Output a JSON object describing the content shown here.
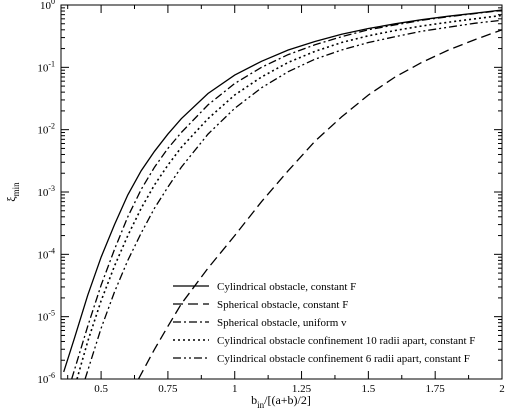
{
  "chart_data": {
    "type": "line",
    "title": "",
    "xlabel": "b_in/[(a+b)/2]",
    "ylabel": "ξ_min",
    "xlim": [
      0.35,
      2.0
    ],
    "ylim": [
      1e-06,
      1
    ],
    "yscale": "log",
    "grid": false,
    "legend_position": "bottom-right",
    "x_ticks": [
      {
        "value": 0.5,
        "label": "0.5"
      },
      {
        "value": 0.75,
        "label": "0.75"
      },
      {
        "value": 1.0,
        "label": "1"
      },
      {
        "value": 1.25,
        "label": "1.25"
      },
      {
        "value": 1.5,
        "label": "1.5"
      },
      {
        "value": 1.75,
        "label": "1.75"
      },
      {
        "value": 2.0,
        "label": "2"
      }
    ],
    "y_ticks": [
      {
        "value": 1e-06,
        "base": "10",
        "exp": "-6"
      },
      {
        "value": 1e-05,
        "base": "10",
        "exp": "-5"
      },
      {
        "value": 0.0001,
        "base": "10",
        "exp": "-4"
      },
      {
        "value": 0.001,
        "base": "10",
        "exp": "-3"
      },
      {
        "value": 0.01,
        "base": "10",
        "exp": "-2"
      },
      {
        "value": 0.1,
        "base": "10",
        "exp": "-1"
      },
      {
        "value": 1,
        "base": "10",
        "exp": "0"
      }
    ],
    "series": [
      {
        "name": "Cylindrical obstacle, constant F",
        "dash": "solid",
        "x": [
          0.36,
          0.4,
          0.45,
          0.5,
          0.55,
          0.6,
          0.65,
          0.7,
          0.75,
          0.8,
          0.9,
          1.0,
          1.1,
          1.2,
          1.3,
          1.4,
          1.5,
          1.6,
          1.7,
          1.8,
          1.9,
          2.0
        ],
        "y": [
          1.3e-06,
          4.5e-06,
          2.2e-05,
          9e-05,
          0.0003,
          0.0009,
          0.0022,
          0.0045,
          0.0085,
          0.015,
          0.038,
          0.075,
          0.125,
          0.19,
          0.26,
          0.34,
          0.42,
          0.5,
          0.58,
          0.66,
          0.74,
          0.83
        ]
      },
      {
        "name": "Spherical obstacle, constant F",
        "dash": "dashed",
        "x": [
          0.64,
          0.7,
          0.75,
          0.8,
          0.9,
          1.0,
          1.1,
          1.2,
          1.3,
          1.4,
          1.5,
          1.6,
          1.7,
          1.8,
          1.9,
          2.0
        ],
        "y": [
          1e-06,
          3e-06,
          7e-06,
          1.6e-05,
          6e-05,
          0.0002,
          0.0007,
          0.0022,
          0.0065,
          0.016,
          0.036,
          0.07,
          0.12,
          0.19,
          0.28,
          0.4
        ]
      },
      {
        "name": "Spherical obstacle, uniform v",
        "dash": "dash-dot",
        "x": [
          0.39,
          0.45,
          0.5,
          0.55,
          0.6,
          0.65,
          0.7,
          0.75,
          0.8,
          0.9,
          1.0,
          1.1,
          1.2,
          1.3,
          1.4,
          1.5,
          1.6,
          1.7,
          1.8,
          1.9,
          2.0
        ],
        "y": [
          1e-06,
          7e-06,
          3.2e-05,
          0.00012,
          0.0004,
          0.0011,
          0.0025,
          0.005,
          0.009,
          0.025,
          0.055,
          0.1,
          0.16,
          0.23,
          0.31,
          0.4,
          0.48,
          0.57,
          0.65,
          0.73,
          0.82
        ]
      },
      {
        "name": "Cylindrical obstacle confinement 10 radii apart, constant F",
        "dash": "dotted",
        "x": [
          0.41,
          0.45,
          0.5,
          0.55,
          0.6,
          0.65,
          0.7,
          0.75,
          0.8,
          0.9,
          1.0,
          1.1,
          1.2,
          1.3,
          1.4,
          1.5,
          1.6,
          1.7,
          1.8,
          1.9,
          2.0
        ],
        "y": [
          1e-06,
          4e-06,
          1.8e-05,
          6.5e-05,
          0.0002,
          0.00055,
          0.0013,
          0.0027,
          0.0052,
          0.015,
          0.036,
          0.07,
          0.12,
          0.18,
          0.25,
          0.32,
          0.39,
          0.46,
          0.53,
          0.6,
          0.68
        ]
      },
      {
        "name": "Cylindrical obstacle confinement 6 radii apart, constant F",
        "dash": "dash-dot-dot",
        "x": [
          0.44,
          0.5,
          0.55,
          0.6,
          0.65,
          0.7,
          0.75,
          0.8,
          0.9,
          1.0,
          1.1,
          1.2,
          1.3,
          1.4,
          1.5,
          1.6,
          1.7,
          1.8,
          1.9,
          2.0
        ],
        "y": [
          1e-06,
          6.5e-06,
          2.5e-05,
          8e-05,
          0.00022,
          0.00055,
          0.0012,
          0.0025,
          0.0085,
          0.022,
          0.047,
          0.085,
          0.135,
          0.19,
          0.25,
          0.31,
          0.38,
          0.44,
          0.51,
          0.57
        ]
      }
    ]
  }
}
